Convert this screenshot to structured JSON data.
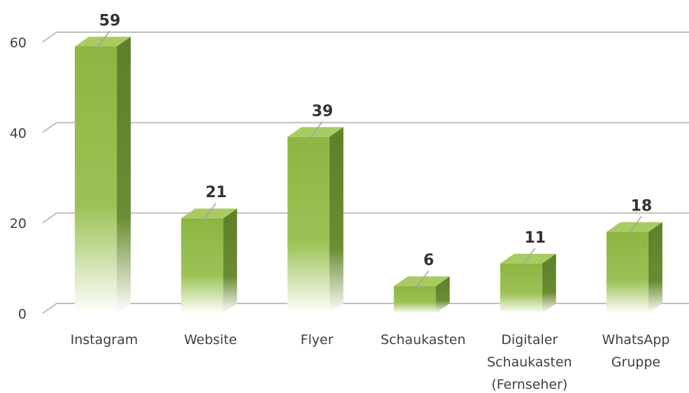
{
  "chart_data": {
    "type": "bar3d",
    "categories": [
      "Instagram",
      "Website",
      "Flyer",
      "Schaukasten",
      "Digitaler Schaukasten (Fernseher)",
      "WhatsApp Gruppe"
    ],
    "values": [
      59,
      21,
      39,
      6,
      11,
      18
    ],
    "color": "#8db542",
    "ylim": [
      0,
      60
    ],
    "yticks": [
      0,
      20,
      40,
      60
    ],
    "grid": true
  }
}
